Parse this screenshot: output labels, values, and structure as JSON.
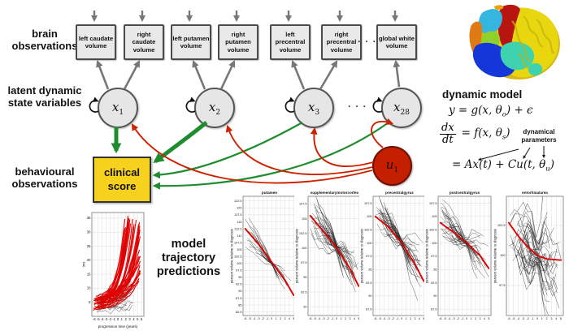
{
  "colors": {
    "accent_green": "#1f8c2f",
    "accent_red": "#cc2200",
    "input_node_red": "#c42000",
    "clinical_yellow": "#f6d21e",
    "node_gray_fill": "#e6e6e6",
    "arrow_gray": "#777777",
    "trend_red": "#e00000"
  },
  "labels": {
    "brain": "brain observations",
    "latent": "latent dynamic state variables",
    "behavioural": "behavioural observations",
    "trajectory": "model trajectory predictions"
  },
  "ellipsis": "· · ·",
  "boxes": [
    {
      "label": "left caudate volume"
    },
    {
      "label": "right caudate volume"
    },
    {
      "label": "left putamen volume"
    },
    {
      "label": "right putamen volume"
    },
    {
      "label": "left precentral volume"
    },
    {
      "label": "right precentral volume"
    },
    {
      "label": "global white volume"
    }
  ],
  "states": [
    {
      "base": "x",
      "sub": "1"
    },
    {
      "base": "x",
      "sub": "2"
    },
    {
      "base": "x",
      "sub": "3"
    },
    {
      "base": "x",
      "sub": "28"
    }
  ],
  "input_node": {
    "base": "u",
    "sub": "1"
  },
  "clinical_score": "clinical score",
  "dynamic_model": {
    "title": "dynamic model",
    "eq1_pre": "y = g(x, θ",
    "eq1_sub": "o",
    "eq1_post": ") + ϵ",
    "frac_num": "dx",
    "frac_den": "dt",
    "eq2_pre": "= f(x, θ",
    "eq2_sub": "s",
    "eq2_post": ")",
    "eq3_pre": "= Ax(t) + Cu(t, θ",
    "eq3_sub": "u",
    "eq3_post": ")",
    "annotation": "dynamical parameters"
  },
  "chart_data": [
    {
      "type": "line",
      "title": "",
      "xlabel": "progression time (years)",
      "ylabel": "tms",
      "xlim": [
        -6.6,
        6.6
      ],
      "ylim": [
        0,
        37
      ],
      "xticks": [
        -6,
        -5,
        -4,
        -3,
        -2,
        -1,
        0,
        1,
        2,
        3,
        4,
        5,
        6
      ],
      "yticks": [
        5,
        10,
        15,
        20,
        25,
        30,
        35
      ],
      "style": "tms-bundle",
      "seed": 11,
      "n_red": 38,
      "n_gray": 24,
      "trend": {
        "x": [
          -6,
          -4,
          -2,
          0,
          2,
          4,
          5.5
        ],
        "y": [
          4,
          5,
          6.5,
          9.5,
          14,
          22,
          33
        ]
      }
    },
    {
      "type": "line",
      "title": "putamen",
      "xlabel": "",
      "ylabel": "percent volume relative to diagnosis",
      "xlim": [
        -6.5,
        5.5
      ],
      "ylim": [
        81.2,
        124.2
      ],
      "xticks": [
        -6,
        -5,
        -4,
        -3,
        -2,
        -1,
        0,
        1,
        2,
        3,
        4,
        5
      ],
      "yticks": [
        82.5,
        85,
        87.5,
        90,
        92.5,
        95,
        97.5,
        100,
        102.5,
        105,
        107.5,
        110,
        112.5,
        115,
        117.5,
        120,
        122.5
      ],
      "style": "volume",
      "seed": 21,
      "n_gray": 24,
      "noise": 0.8,
      "trend": {
        "x": [
          -6,
          -3,
          0,
          3,
          5
        ],
        "y": [
          112.5,
          107,
          100.5,
          94,
          88.5
        ]
      }
    },
    {
      "type": "line",
      "title": "supplementarymotorcortex",
      "xlabel": "",
      "ylabel": "percent volume relative to diagnosis",
      "xlim": [
        -6.5,
        5.5
      ],
      "ylim": [
        88.5,
        108.8
      ],
      "xticks": [
        -6,
        -5,
        -4,
        -3,
        -2,
        -1,
        0,
        1,
        2,
        3,
        4,
        5
      ],
      "yticks": [
        90,
        92.5,
        95,
        97.5,
        100,
        102.5,
        105,
        107.5
      ],
      "style": "volume",
      "seed": 31,
      "n_gray": 40,
      "noise": 1.15,
      "trend": {
        "x": [
          -6,
          -3,
          0,
          3,
          5
        ],
        "y": [
          105.5,
          102.8,
          100,
          96.5,
          93.5
        ]
      }
    },
    {
      "type": "line",
      "title": "precentralgyrus",
      "xlabel": "",
      "ylabel": "percent volume relative to diagnosis",
      "xlim": [
        -6.5,
        5.5
      ],
      "ylim": [
        86.3,
        108.8
      ],
      "xticks": [
        -6,
        -5,
        -4,
        -3,
        -2,
        -1,
        0,
        1,
        2,
        3,
        4,
        5
      ],
      "yticks": [
        87.5,
        90,
        92.5,
        95,
        97.5,
        100,
        102.5,
        105,
        107.5
      ],
      "style": "volume",
      "seed": 41,
      "n_gray": 36,
      "noise": 1.1,
      "trend": {
        "x": [
          -6,
          -3,
          0,
          3,
          5
        ],
        "y": [
          105,
          103,
          100,
          96,
          92.8
        ]
      }
    },
    {
      "type": "line",
      "title": "postcentralgyrus",
      "xlabel": "",
      "ylabel": "percent volume relative to diagnosis",
      "xlim": [
        -6.5,
        5.5
      ],
      "ylim": [
        86.3,
        108.8
      ],
      "xticks": [
        -6,
        -5,
        -4,
        -3,
        -2,
        -1,
        0,
        1,
        2,
        3,
        4,
        5
      ],
      "yticks": [
        87.5,
        90,
        92.5,
        95,
        97.5,
        100,
        102.5,
        105,
        107.5
      ],
      "style": "volume",
      "seed": 51,
      "n_gray": 36,
      "noise": 1.0,
      "trend": {
        "x": [
          -6,
          -3,
          0,
          3,
          5
        ],
        "y": [
          103.8,
          102,
          100,
          97.6,
          95.2
        ]
      }
    },
    {
      "type": "line",
      "title": "entorhinalarea",
      "xlabel": "",
      "ylabel": "percent volume relative to diagnosis",
      "xlim": [
        -6.5,
        5.5
      ],
      "ylim": [
        95.0,
        104.9
      ],
      "xticks": [
        -6,
        -5,
        -4,
        -3,
        -2,
        -1,
        0,
        1,
        2,
        3,
        4,
        5
      ],
      "yticks": [
        97.5,
        100,
        102.5
      ],
      "style": "volume",
      "seed": 61,
      "n_gray": 45,
      "noise": 1.35,
      "trend": {
        "x": [
          -6,
          -4,
          -2,
          0,
          2,
          5
        ],
        "y": [
          102.7,
          101.6,
          100.7,
          100,
          99.7,
          99.6
        ]
      }
    }
  ]
}
